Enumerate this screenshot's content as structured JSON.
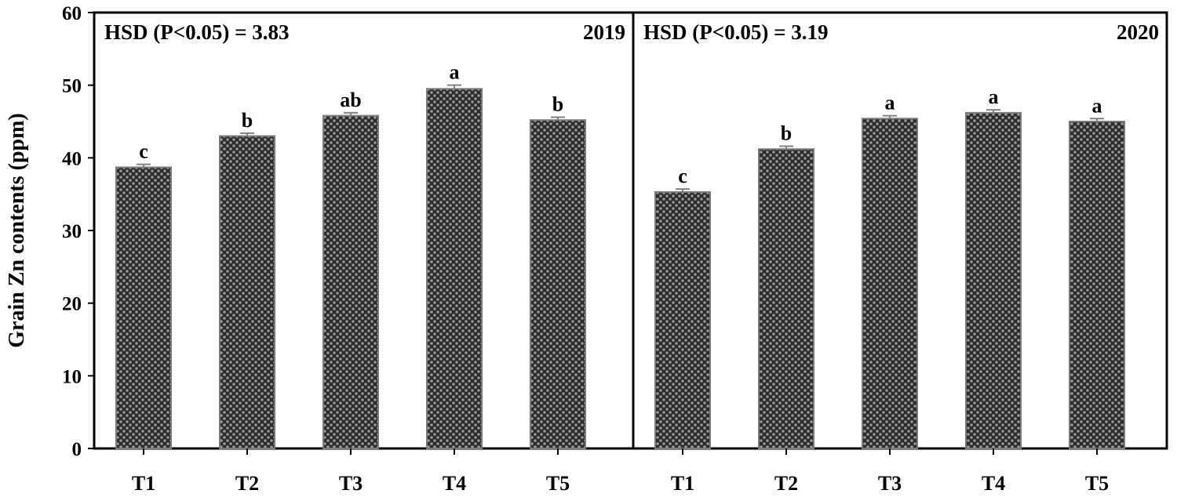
{
  "chart_data": {
    "type": "bar",
    "ylabel": "Grain Zn contents (ppm)",
    "ylim": [
      0,
      60
    ],
    "yticks": [
      0,
      10,
      20,
      30,
      40,
      50,
      60
    ],
    "categories": [
      "T1",
      "T2",
      "T3",
      "T4",
      "T5"
    ],
    "colors": {
      "bar_fill": "#2b2b2b",
      "bar_dots": "#9a9a9a",
      "error_bar": "#808080",
      "frame": "#000000"
    },
    "panels": [
      {
        "year": "2019",
        "hsd_label": "HSD (P<0.05) = 3.83",
        "values": [
          38.7,
          43.0,
          45.8,
          49.5,
          45.2
        ],
        "errors": [
          0.4,
          0.4,
          0.4,
          0.5,
          0.4
        ],
        "letters": [
          "c",
          "b",
          "ab",
          "a",
          "b"
        ]
      },
      {
        "year": "2020",
        "hsd_label": "HSD (P<0.05) = 3.19",
        "values": [
          35.3,
          41.2,
          45.4,
          46.2,
          45.0
        ],
        "errors": [
          0.4,
          0.4,
          0.4,
          0.4,
          0.4
        ],
        "letters": [
          "c",
          "b",
          "a",
          "a",
          "a"
        ]
      }
    ]
  }
}
